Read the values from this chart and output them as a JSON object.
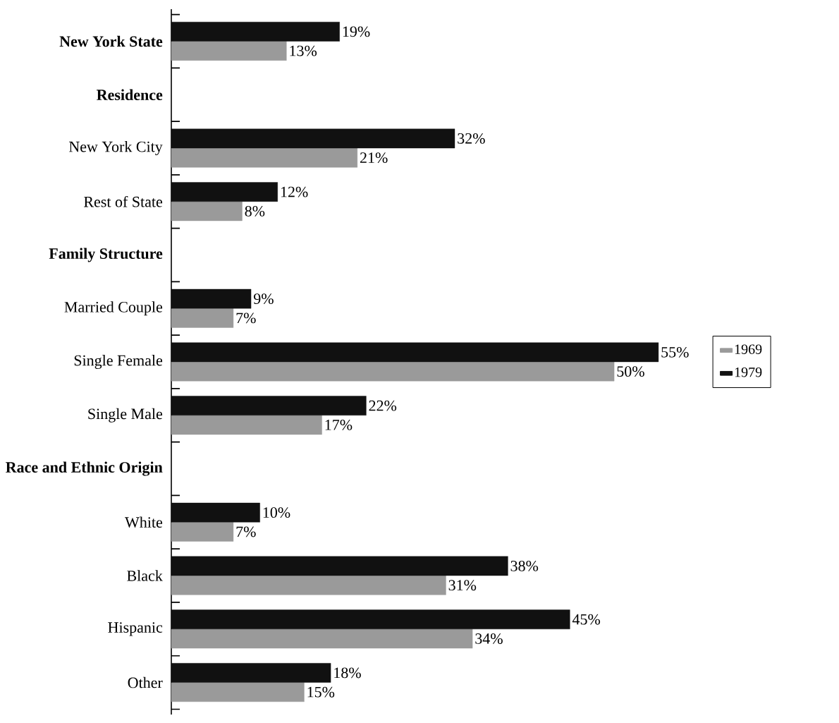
{
  "chart_data": {
    "type": "bar",
    "orientation": "horizontal",
    "legend": "right",
    "categories": [
      "New York State",
      "Residence",
      "New York City",
      "Rest of State",
      "Family Structure",
      "Married Couple",
      "Single Female",
      "Single Male",
      "Race and Ethnic Origin",
      "White",
      "Black",
      "Hispanic",
      "Other"
    ],
    "series": [
      {
        "name": "1969",
        "color": "#9a9a9a",
        "values": [
          13,
          null,
          21,
          8,
          null,
          7,
          50,
          17,
          null,
          7,
          31,
          34,
          15
        ],
        "value_labels": [
          "13%",
          null,
          "21%",
          "8%",
          null,
          "7%",
          "50%",
          "17%",
          null,
          "7%",
          "31%",
          "34%",
          "15%"
        ]
      },
      {
        "name": "1979",
        "color": "#111111",
        "values": [
          19,
          null,
          32,
          12,
          null,
          9,
          55,
          22,
          null,
          10,
          38,
          45,
          18
        ],
        "value_labels": [
          "19%",
          null,
          "32%",
          "12%",
          null,
          "9%",
          "55%",
          "22%",
          null,
          "10%",
          "38%",
          "45%",
          "18%"
        ]
      }
    ]
  }
}
